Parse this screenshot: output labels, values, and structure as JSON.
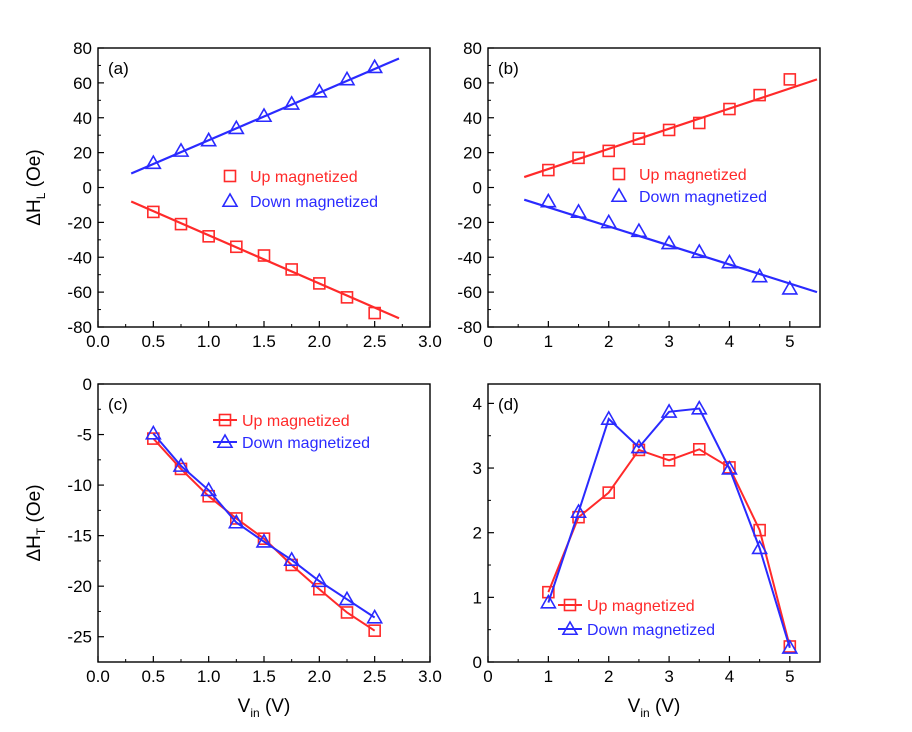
{
  "chart_data": [
    {
      "panel": "(a)",
      "type": "scatter",
      "xlabel": "",
      "ylabel": "ΔHL (Oe)",
      "ylabel_main": "ΔH",
      "ylabel_sub": "L",
      "ylabel_unit": " (Oe)",
      "xlim": [
        0.0,
        3.0
      ],
      "ylim": [
        -80,
        80
      ],
      "xticks": [
        "0.0",
        "0.5",
        "1.0",
        "1.5",
        "2.0",
        "2.5",
        "3.0"
      ],
      "yticks": [
        "-80",
        "-60",
        "-40",
        "-20",
        "0",
        "20",
        "40",
        "60",
        "80"
      ],
      "legend": "center-right",
      "series": [
        {
          "name": "Up magnetized",
          "color": "#ff2a2a",
          "marker": "square",
          "x": [
            0.5,
            0.75,
            1.0,
            1.25,
            1.5,
            1.75,
            2.0,
            2.25,
            2.5
          ],
          "y": [
            -14,
            -21,
            -28,
            -34,
            -39,
            -47,
            -55,
            -63,
            -72
          ],
          "fit": {
            "x": [
              0.3,
              2.72
            ],
            "y": [
              -8,
              -75
            ]
          }
        },
        {
          "name": "Down magnetized",
          "color": "#2a2aff",
          "marker": "triangle",
          "x": [
            0.5,
            0.75,
            1.0,
            1.25,
            1.5,
            1.75,
            2.0,
            2.25,
            2.5
          ],
          "y": [
            14,
            21,
            27,
            34,
            41,
            48,
            55,
            62,
            69
          ],
          "fit": {
            "x": [
              0.3,
              2.72
            ],
            "y": [
              8,
              74
            ]
          }
        }
      ]
    },
    {
      "panel": "(b)",
      "type": "scatter",
      "xlabel": "",
      "ylabel": "",
      "xlim": [
        0,
        5.5
      ],
      "ylim": [
        -80,
        80
      ],
      "xticks": [
        "0",
        "1",
        "2",
        "3",
        "4",
        "5"
      ],
      "yticks": [
        "-80",
        "-60",
        "-40",
        "-20",
        "0",
        "20",
        "40",
        "60",
        "80"
      ],
      "legend": "center-right",
      "series": [
        {
          "name": "Up magnetized",
          "color": "#ff2a2a",
          "marker": "square",
          "x": [
            1.0,
            1.5,
            2.0,
            2.5,
            3.0,
            3.5,
            4.0,
            4.5,
            5.0
          ],
          "y": [
            10,
            17,
            21,
            28,
            33,
            37,
            45,
            53,
            62
          ],
          "fit": {
            "x": [
              0.6,
              5.45
            ],
            "y": [
              6,
              62
            ]
          }
        },
        {
          "name": "Down magnetized",
          "color": "#2a2aff",
          "marker": "triangle",
          "x": [
            1.0,
            1.5,
            2.0,
            2.5,
            3.0,
            3.5,
            4.0,
            4.5,
            5.0
          ],
          "y": [
            -8,
            -14,
            -20,
            -25,
            -32,
            -37,
            -43,
            -51,
            -58
          ],
          "fit": {
            "x": [
              0.6,
              5.45
            ],
            "y": [
              -7,
              -60
            ]
          }
        }
      ]
    },
    {
      "panel": "(c)",
      "type": "line",
      "xlabel": "Vin (V)",
      "xlabel_main": "V",
      "xlabel_sub": "in",
      "xlabel_unit": " (V)",
      "ylabel": "ΔHT (Oe)",
      "ylabel_main": "ΔH",
      "ylabel_sub": "T",
      "ylabel_unit": " (Oe)",
      "xlim": [
        0.0,
        3.0
      ],
      "ylim": [
        -27.5,
        0
      ],
      "xticks": [
        "0.0",
        "0.5",
        "1.0",
        "1.5",
        "2.0",
        "2.5",
        "3.0"
      ],
      "yticks": [
        "-25",
        "-20",
        "-15",
        "-10",
        "-5",
        "0"
      ],
      "legend": "top-right",
      "series": [
        {
          "name": "Up magnetized",
          "color": "#ff2a2a",
          "marker": "square",
          "x": [
            0.5,
            0.75,
            1.0,
            1.25,
            1.5,
            1.75,
            2.0,
            2.25,
            2.5
          ],
          "y": [
            -5.4,
            -8.4,
            -11.1,
            -13.3,
            -15.3,
            -17.9,
            -20.3,
            -22.6,
            -24.4
          ]
        },
        {
          "name": "Down magnetized",
          "color": "#2a2aff",
          "marker": "triangle",
          "x": [
            0.5,
            0.75,
            1.0,
            1.25,
            1.5,
            1.75,
            2.0,
            2.25,
            2.5
          ],
          "y": [
            -4.9,
            -8.1,
            -10.5,
            -13.7,
            -15.6,
            -17.4,
            -19.5,
            -21.3,
            -23.1
          ]
        }
      ]
    },
    {
      "panel": "(d)",
      "type": "line",
      "xlabel": "Vin (V)",
      "xlabel_main": "V",
      "xlabel_sub": "in",
      "xlabel_unit": " (V)",
      "ylabel": "",
      "xlim": [
        0,
        5.5
      ],
      "ylim": [
        0,
        4.3
      ],
      "xticks": [
        "0",
        "1",
        "2",
        "3",
        "4",
        "5"
      ],
      "yticks": [
        "0",
        "1",
        "2",
        "3",
        "4"
      ],
      "legend": "bottom-right",
      "series": [
        {
          "name": "Up magnetized",
          "color": "#ff2a2a",
          "marker": "square",
          "x": [
            1.0,
            1.5,
            2.0,
            2.5,
            3.0,
            3.5,
            4.0,
            4.5,
            5.0
          ],
          "y": [
            1.08,
            2.24,
            2.62,
            3.28,
            3.12,
            3.29,
            3.01,
            2.04,
            0.24
          ]
        },
        {
          "name": "Down magnetized",
          "color": "#2a2aff",
          "marker": "triangle",
          "x": [
            1.0,
            1.5,
            2.0,
            2.5,
            3.0,
            3.5,
            4.0,
            4.5,
            5.0
          ],
          "y": [
            0.92,
            2.32,
            3.76,
            3.32,
            3.87,
            3.92,
            2.99,
            1.76,
            0.22
          ]
        }
      ]
    }
  ]
}
